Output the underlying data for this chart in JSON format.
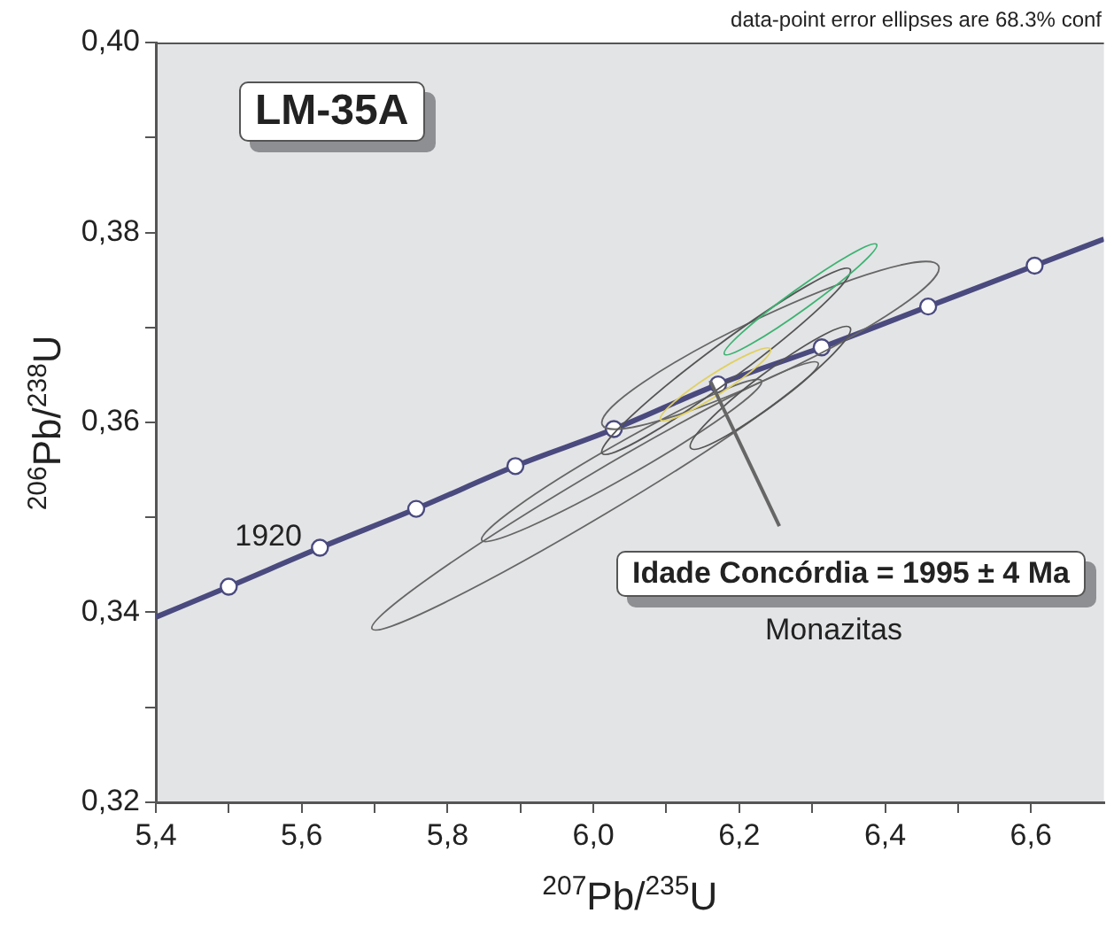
{
  "chart_data": {
    "type": "line",
    "xlabel": "$^{207}$Pb/$^{235}$U",
    "ylabel": "$^{206}$Pb/$^{238}$U",
    "xlim": [
      5.4,
      6.7
    ],
    "ylim": [
      0.32,
      0.4
    ],
    "xticks": [
      {
        "value": 5.4,
        "label": "5,4"
      },
      {
        "value": 5.5,
        "label": null
      },
      {
        "value": 5.6,
        "label": "5,6"
      },
      {
        "value": 5.7,
        "label": null
      },
      {
        "value": 5.8,
        "label": "5,8"
      },
      {
        "value": 5.9,
        "label": null
      },
      {
        "value": 6.0,
        "label": "6,0"
      },
      {
        "value": 6.1,
        "label": null
      },
      {
        "value": 6.2,
        "label": "6,2"
      },
      {
        "value": 6.3,
        "label": null
      },
      {
        "value": 6.4,
        "label": "6,4"
      },
      {
        "value": 6.5,
        "label": null
      },
      {
        "value": 6.6,
        "label": "6,6"
      }
    ],
    "yticks": [
      {
        "value": 0.32,
        "label": "0,32"
      },
      {
        "value": 0.33,
        "label": null
      },
      {
        "value": 0.34,
        "label": "0,34"
      },
      {
        "value": 0.35,
        "label": null
      },
      {
        "value": 0.36,
        "label": "0,36"
      },
      {
        "value": 0.37,
        "label": null
      },
      {
        "value": 0.38,
        "label": "0,38"
      },
      {
        "value": 0.39,
        "label": null
      },
      {
        "value": 0.4,
        "label": "0,40"
      }
    ],
    "grid": false,
    "legend": false,
    "annotations": [
      "data-point error ellipses are 68.3% conf",
      "LM-35A",
      {
        "text": "1920",
        "x": 5.625,
        "y": 0.3468
      },
      {
        "text": "Idade Concórdia = 1995 ± 4 Ma",
        "x": 6.16,
        "y": 0.3644
      },
      "Monazitas"
    ],
    "series": [
      {
        "color": "#4a4a7f",
        "x": [
          5.4,
          5.5,
          5.625,
          5.757,
          5.893,
          6.028,
          6.171,
          6.313,
          6.459,
          6.605,
          6.7
        ],
        "values": [
          0.3395,
          0.3427,
          0.3468,
          0.3509,
          0.3554,
          0.3593,
          0.364,
          0.3679,
          0.3722,
          0.3765,
          0.3793
        ]
      },
      {
        "type": "scatter",
        "marker": "circle",
        "color": "#4a4a7f",
        "x": [
          5.5,
          5.625,
          5.757,
          5.893,
          6.028,
          6.171,
          6.313,
          6.459,
          6.605
        ],
        "values": [
          0.3427,
          0.3468,
          0.3509,
          0.3554,
          0.3593,
          0.364,
          0.3679,
          0.3722,
          0.3765
        ]
      }
    ]
  }
}
